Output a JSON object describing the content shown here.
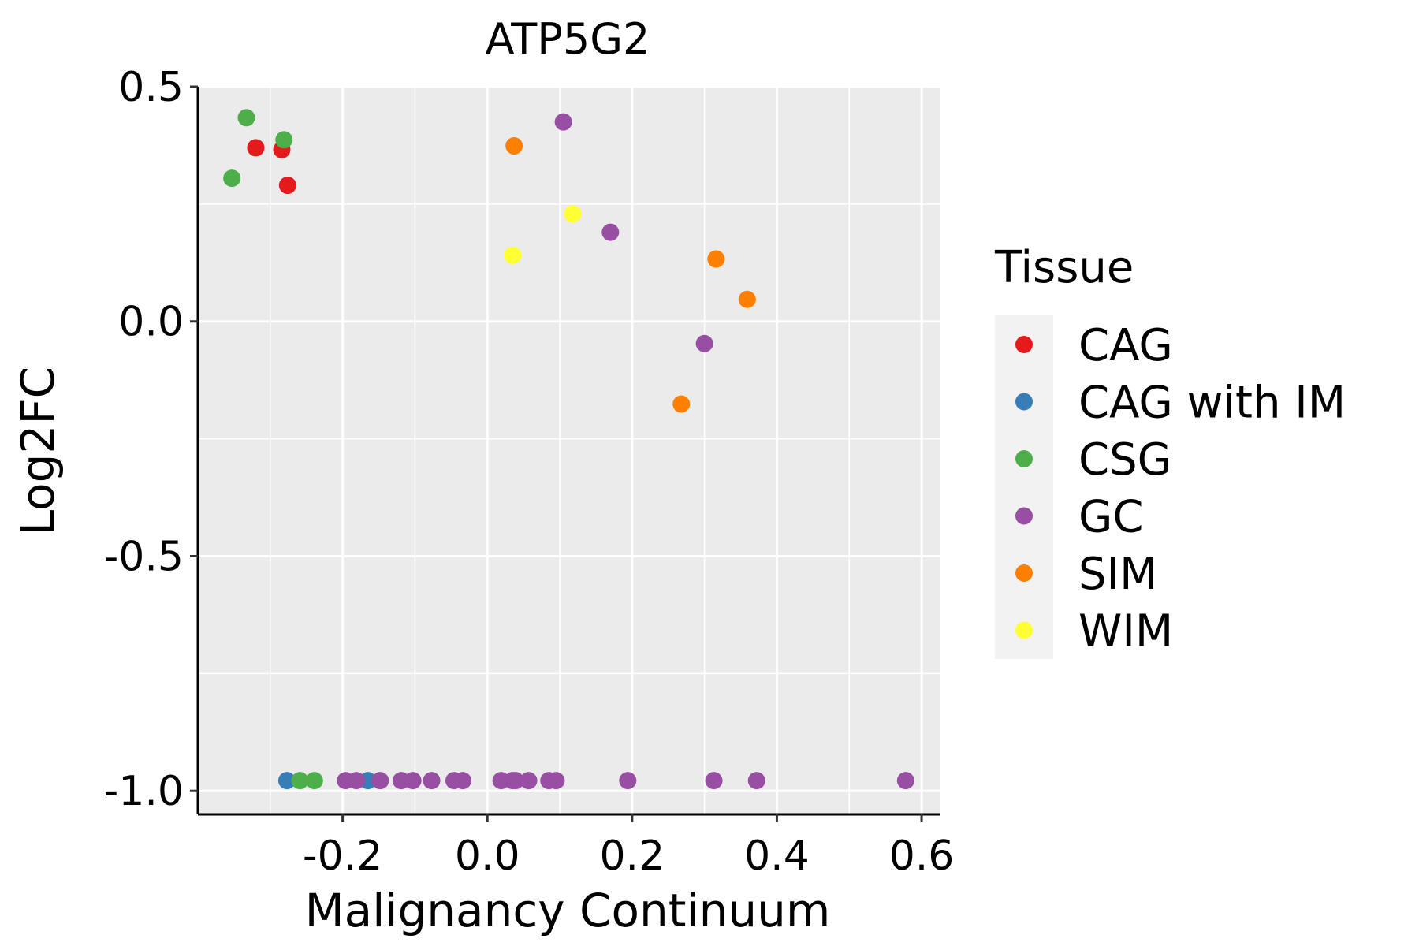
{
  "chart_data": {
    "type": "scatter",
    "title": "ATP5G2",
    "xlabel": "Malignancy Continuum",
    "ylabel": "Log2FC",
    "xlim": [
      -0.4,
      0.625
    ],
    "ylim": [
      -1.05,
      0.5
    ],
    "x_ticks": [
      -0.2,
      0.0,
      0.2,
      0.4,
      0.6
    ],
    "x_tick_labels": [
      "-0.2",
      "0.0",
      "0.2",
      "0.4",
      "0.6"
    ],
    "y_ticks": [
      0.5,
      0.0,
      -0.5,
      -1.0
    ],
    "y_tick_labels": [
      "0.5",
      "0.0",
      "-0.5",
      "-1.0"
    ],
    "grid": true,
    "legend": {
      "title": "Tissue",
      "placement": "right"
    },
    "series": [
      {
        "name": "CAG",
        "color": "#e41a1c",
        "points": [
          [
            -0.32,
            0.37
          ],
          [
            -0.284,
            0.366
          ],
          [
            -0.276,
            0.29
          ]
        ]
      },
      {
        "name": "CAG with IM",
        "color": "#377eb8",
        "points": [
          [
            -0.277,
            -0.978
          ],
          [
            -0.165,
            -0.978
          ]
        ]
      },
      {
        "name": "CSG",
        "color": "#4daf4a",
        "points": [
          [
            -0.333,
            0.434
          ],
          [
            -0.281,
            0.387
          ],
          [
            -0.353,
            0.305
          ],
          [
            -0.259,
            -0.978
          ],
          [
            -0.239,
            -0.978
          ]
        ]
      },
      {
        "name": "GC",
        "color": "#984ea3",
        "points": [
          [
            0.105,
            0.425
          ],
          [
            0.17,
            0.19
          ],
          [
            0.3,
            -0.047
          ],
          [
            -0.196,
            -0.978
          ],
          [
            -0.181,
            -0.978
          ],
          [
            -0.148,
            -0.978
          ],
          [
            -0.119,
            -0.978
          ],
          [
            -0.103,
            -0.978
          ],
          [
            -0.077,
            -0.978
          ],
          [
            -0.046,
            -0.978
          ],
          [
            -0.034,
            -0.978
          ],
          [
            0.019,
            -0.978
          ],
          [
            0.035,
            -0.978
          ],
          [
            0.039,
            -0.978
          ],
          [
            0.057,
            -0.978
          ],
          [
            0.085,
            -0.978
          ],
          [
            0.095,
            -0.978
          ],
          [
            0.194,
            -0.978
          ],
          [
            0.313,
            -0.978
          ],
          [
            0.372,
            -0.978
          ],
          [
            0.578,
            -0.978
          ]
        ]
      },
      {
        "name": "SIM",
        "color": "#ff7f00",
        "points": [
          [
            0.037,
            0.374
          ],
          [
            0.316,
            0.133
          ],
          [
            0.359,
            0.047
          ],
          [
            0.268,
            -0.176
          ]
        ]
      },
      {
        "name": "WIM",
        "color": "#ffff33",
        "points": [
          [
            0.118,
            0.229
          ],
          [
            0.035,
            0.141
          ]
        ]
      }
    ]
  }
}
